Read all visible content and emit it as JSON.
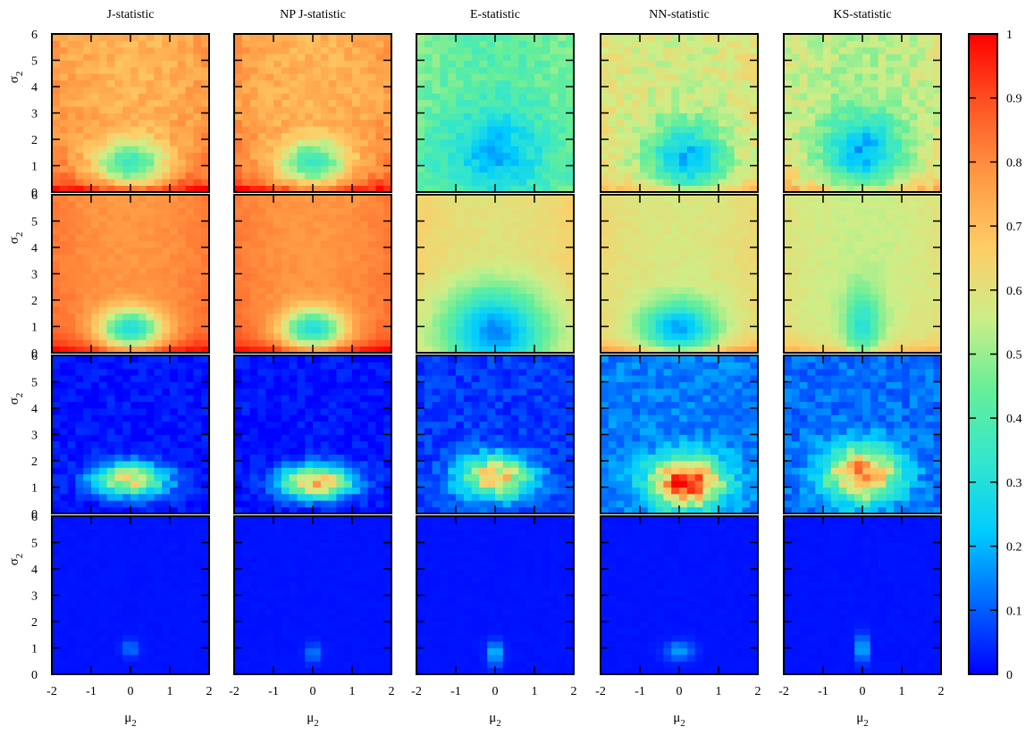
{
  "chart_data": {
    "type": "heatmap",
    "column_titles": [
      "J-statistic",
      "NP J-statistic",
      "E-statistic",
      "NN-statistic",
      "KS-statistic"
    ],
    "xlabel": "μ2",
    "ylabel": "σ2",
    "xlim": [
      -2,
      2
    ],
    "ylim": [
      0,
      6
    ],
    "x_ticks": [
      "-2",
      "-1",
      "0",
      "1",
      "2"
    ],
    "y_ticks": [
      "0",
      "1",
      "2",
      "3",
      "4",
      "5",
      "6"
    ],
    "grid_rows": 4,
    "grid_cols": 5,
    "colorbar": {
      "range": [
        0,
        1
      ],
      "ticks": [
        "0",
        "0.1",
        "0.2",
        "0.3",
        "0.4",
        "0.5",
        "0.6",
        "0.7",
        "0.8",
        "0.9",
        "1"
      ],
      "colormap": [
        "#0000ff",
        "#0066ff",
        "#00ccff",
        "#33e6cc",
        "#66ee99",
        "#ccee88",
        "#ffcc66",
        "#ff9944",
        "#ff5522",
        "#ff0000"
      ]
    },
    "panels": [
      [
        {
          "base": 0.78,
          "dip_depth": 0.42,
          "dip_center": [
            0.0,
            1.1
          ],
          "dip_width": [
            0.9,
            0.9
          ],
          "upper": 0.72,
          "bottom_boost": 0.22,
          "noise": 0.04
        },
        {
          "base": 0.78,
          "dip_depth": 0.42,
          "dip_center": [
            0.0,
            1.1
          ],
          "dip_width": [
            0.9,
            0.9
          ],
          "upper": 0.72,
          "bottom_boost": 0.22,
          "noise": 0.04
        },
        {
          "base": 0.36,
          "dip_depth": 0.18,
          "dip_center": [
            0.0,
            1.6
          ],
          "dip_width": [
            1.2,
            1.6
          ],
          "upper": 0.42,
          "bottom_boost": 0.06,
          "noise": 0.05
        },
        {
          "base": 0.56,
          "dip_depth": 0.36,
          "dip_center": [
            0.2,
            1.3
          ],
          "dip_width": [
            1.0,
            1.3
          ],
          "upper": 0.56,
          "bottom_boost": 0.14,
          "noise": 0.05
        },
        {
          "base": 0.58,
          "dip_depth": 0.36,
          "dip_center": [
            0.0,
            1.5
          ],
          "dip_width": [
            1.0,
            1.4
          ],
          "upper": 0.5,
          "bottom_boost": 0.14,
          "noise": 0.05
        }
      ],
      [
        {
          "base": 0.8,
          "dip_depth": 0.52,
          "dip_center": [
            0.0,
            0.9
          ],
          "dip_width": [
            0.8,
            0.8
          ],
          "upper": 0.78,
          "bottom_boost": 0.2,
          "noise": 0.015
        },
        {
          "base": 0.8,
          "dip_depth": 0.52,
          "dip_center": [
            0.0,
            0.9
          ],
          "dip_width": [
            0.8,
            0.8
          ],
          "upper": 0.78,
          "bottom_boost": 0.2,
          "noise": 0.015
        },
        {
          "base": 0.52,
          "dip_depth": 0.4,
          "dip_center": [
            0.0,
            0.8
          ],
          "dip_width": [
            1.2,
            1.6
          ],
          "upper": 0.6,
          "bottom_boost": 0.05,
          "noise": 0.015
        },
        {
          "base": 0.55,
          "dip_depth": 0.4,
          "dip_center": [
            0.0,
            0.9
          ],
          "dip_width": [
            0.9,
            1.0
          ],
          "upper": 0.58,
          "bottom_boost": 0.22,
          "noise": 0.015
        },
        {
          "base": 0.55,
          "dip_depth": 0.25,
          "dip_center": [
            0.0,
            1.0
          ],
          "dip_width": [
            0.45,
            1.4
          ],
          "upper": 0.55,
          "bottom_boost": 0.16,
          "noise": 0.015
        }
      ],
      [
        {
          "base": 0.02,
          "peak": 0.6,
          "peak_center": [
            0.0,
            1.3
          ],
          "peak_width": [
            0.9,
            0.6
          ],
          "noise": 0.08
        },
        {
          "base": 0.02,
          "peak": 0.68,
          "peak_center": [
            0.1,
            1.2
          ],
          "peak_width": [
            0.9,
            0.6
          ],
          "noise": 0.08
        },
        {
          "base": 0.06,
          "peak": 0.62,
          "peak_center": [
            0.0,
            1.4
          ],
          "peak_width": [
            0.9,
            0.8
          ],
          "noise": 0.1
        },
        {
          "base": 0.14,
          "peak": 0.82,
          "peak_center": [
            0.2,
            1.2
          ],
          "peak_width": [
            0.9,
            0.9
          ],
          "noise": 0.12
        },
        {
          "base": 0.12,
          "peak": 0.72,
          "peak_center": [
            0.0,
            1.5
          ],
          "peak_width": [
            0.9,
            1.0
          ],
          "noise": 0.12
        }
      ],
      [
        {
          "base": 0.02,
          "peak": 0.12,
          "peak_center": [
            0.0,
            1.0
          ],
          "peak_width": [
            0.2,
            0.3
          ],
          "noise": 0.01
        },
        {
          "base": 0.02,
          "peak": 0.14,
          "peak_center": [
            0.0,
            0.8
          ],
          "peak_width": [
            0.18,
            0.35
          ],
          "noise": 0.01
        },
        {
          "base": 0.02,
          "peak": 0.22,
          "peak_center": [
            0.0,
            0.8
          ],
          "peak_width": [
            0.18,
            0.45
          ],
          "noise": 0.01
        },
        {
          "base": 0.02,
          "peak": 0.16,
          "peak_center": [
            0.0,
            0.9
          ],
          "peak_width": [
            0.35,
            0.35
          ],
          "noise": 0.01
        },
        {
          "base": 0.02,
          "peak": 0.3,
          "peak_center": [
            0.0,
            1.0
          ],
          "peak_width": [
            0.12,
            0.5
          ],
          "noise": 0.01
        }
      ]
    ]
  }
}
